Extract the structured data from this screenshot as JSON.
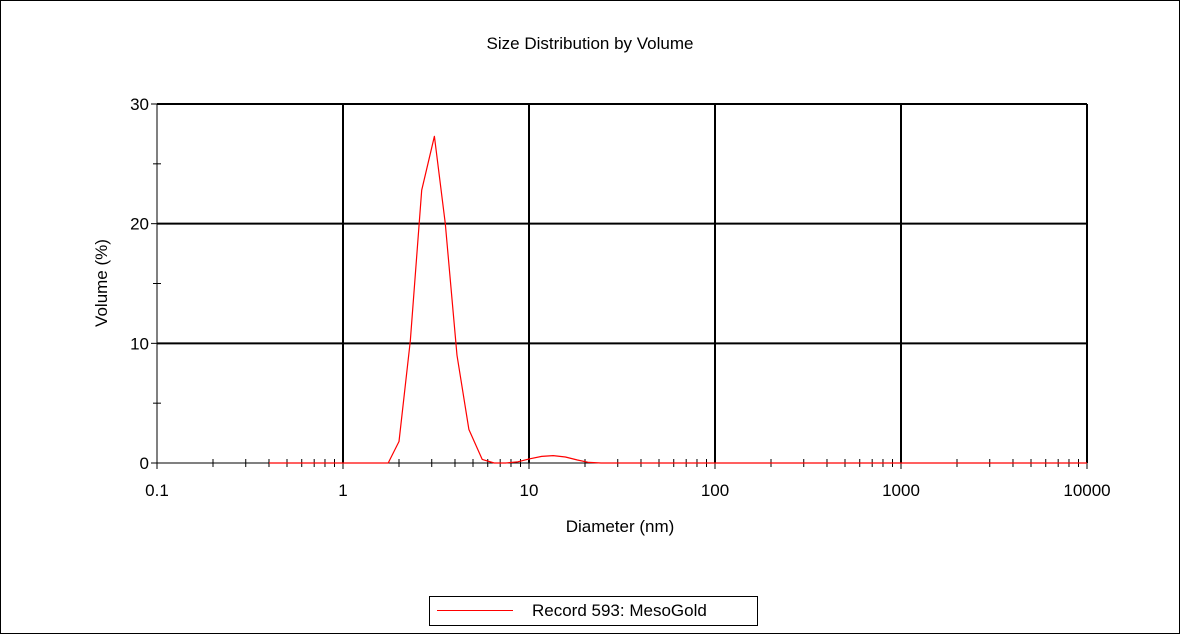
{
  "chart_data": {
    "type": "line",
    "title": "Size Distribution by Volume",
    "xlabel": "Diameter (nm)",
    "ylabel": "Volume (%)",
    "xscale": "log",
    "xlim": [
      0.1,
      10000
    ],
    "ylim": [
      0,
      30
    ],
    "x_ticks": [
      "0.1",
      "1",
      "10",
      "100",
      "1000",
      "10000"
    ],
    "y_ticks": [
      "0",
      "10",
      "20",
      "30"
    ],
    "grid": true,
    "legend_position": "bottom-center",
    "series": [
      {
        "name": "Record 593: MesoGold",
        "color": "#ff0000",
        "x": [
          0.4,
          0.6,
          1.0,
          1.5,
          1.75,
          2.0,
          2.3,
          2.65,
          3.1,
          3.55,
          4.1,
          4.75,
          5.6,
          6.5,
          7.5,
          8.7,
          10.1,
          11.7,
          13.5,
          15.7,
          18.2,
          21.0,
          24.4,
          28.2,
          40,
          100,
          1000,
          10000
        ],
        "values": [
          0,
          0,
          0,
          0,
          0,
          1.8,
          10.2,
          22.8,
          27.3,
          20.0,
          9.0,
          2.8,
          0.3,
          0,
          0,
          0.1,
          0.35,
          0.55,
          0.62,
          0.5,
          0.25,
          0.05,
          0,
          0,
          0,
          0,
          0,
          0
        ]
      }
    ]
  }
}
